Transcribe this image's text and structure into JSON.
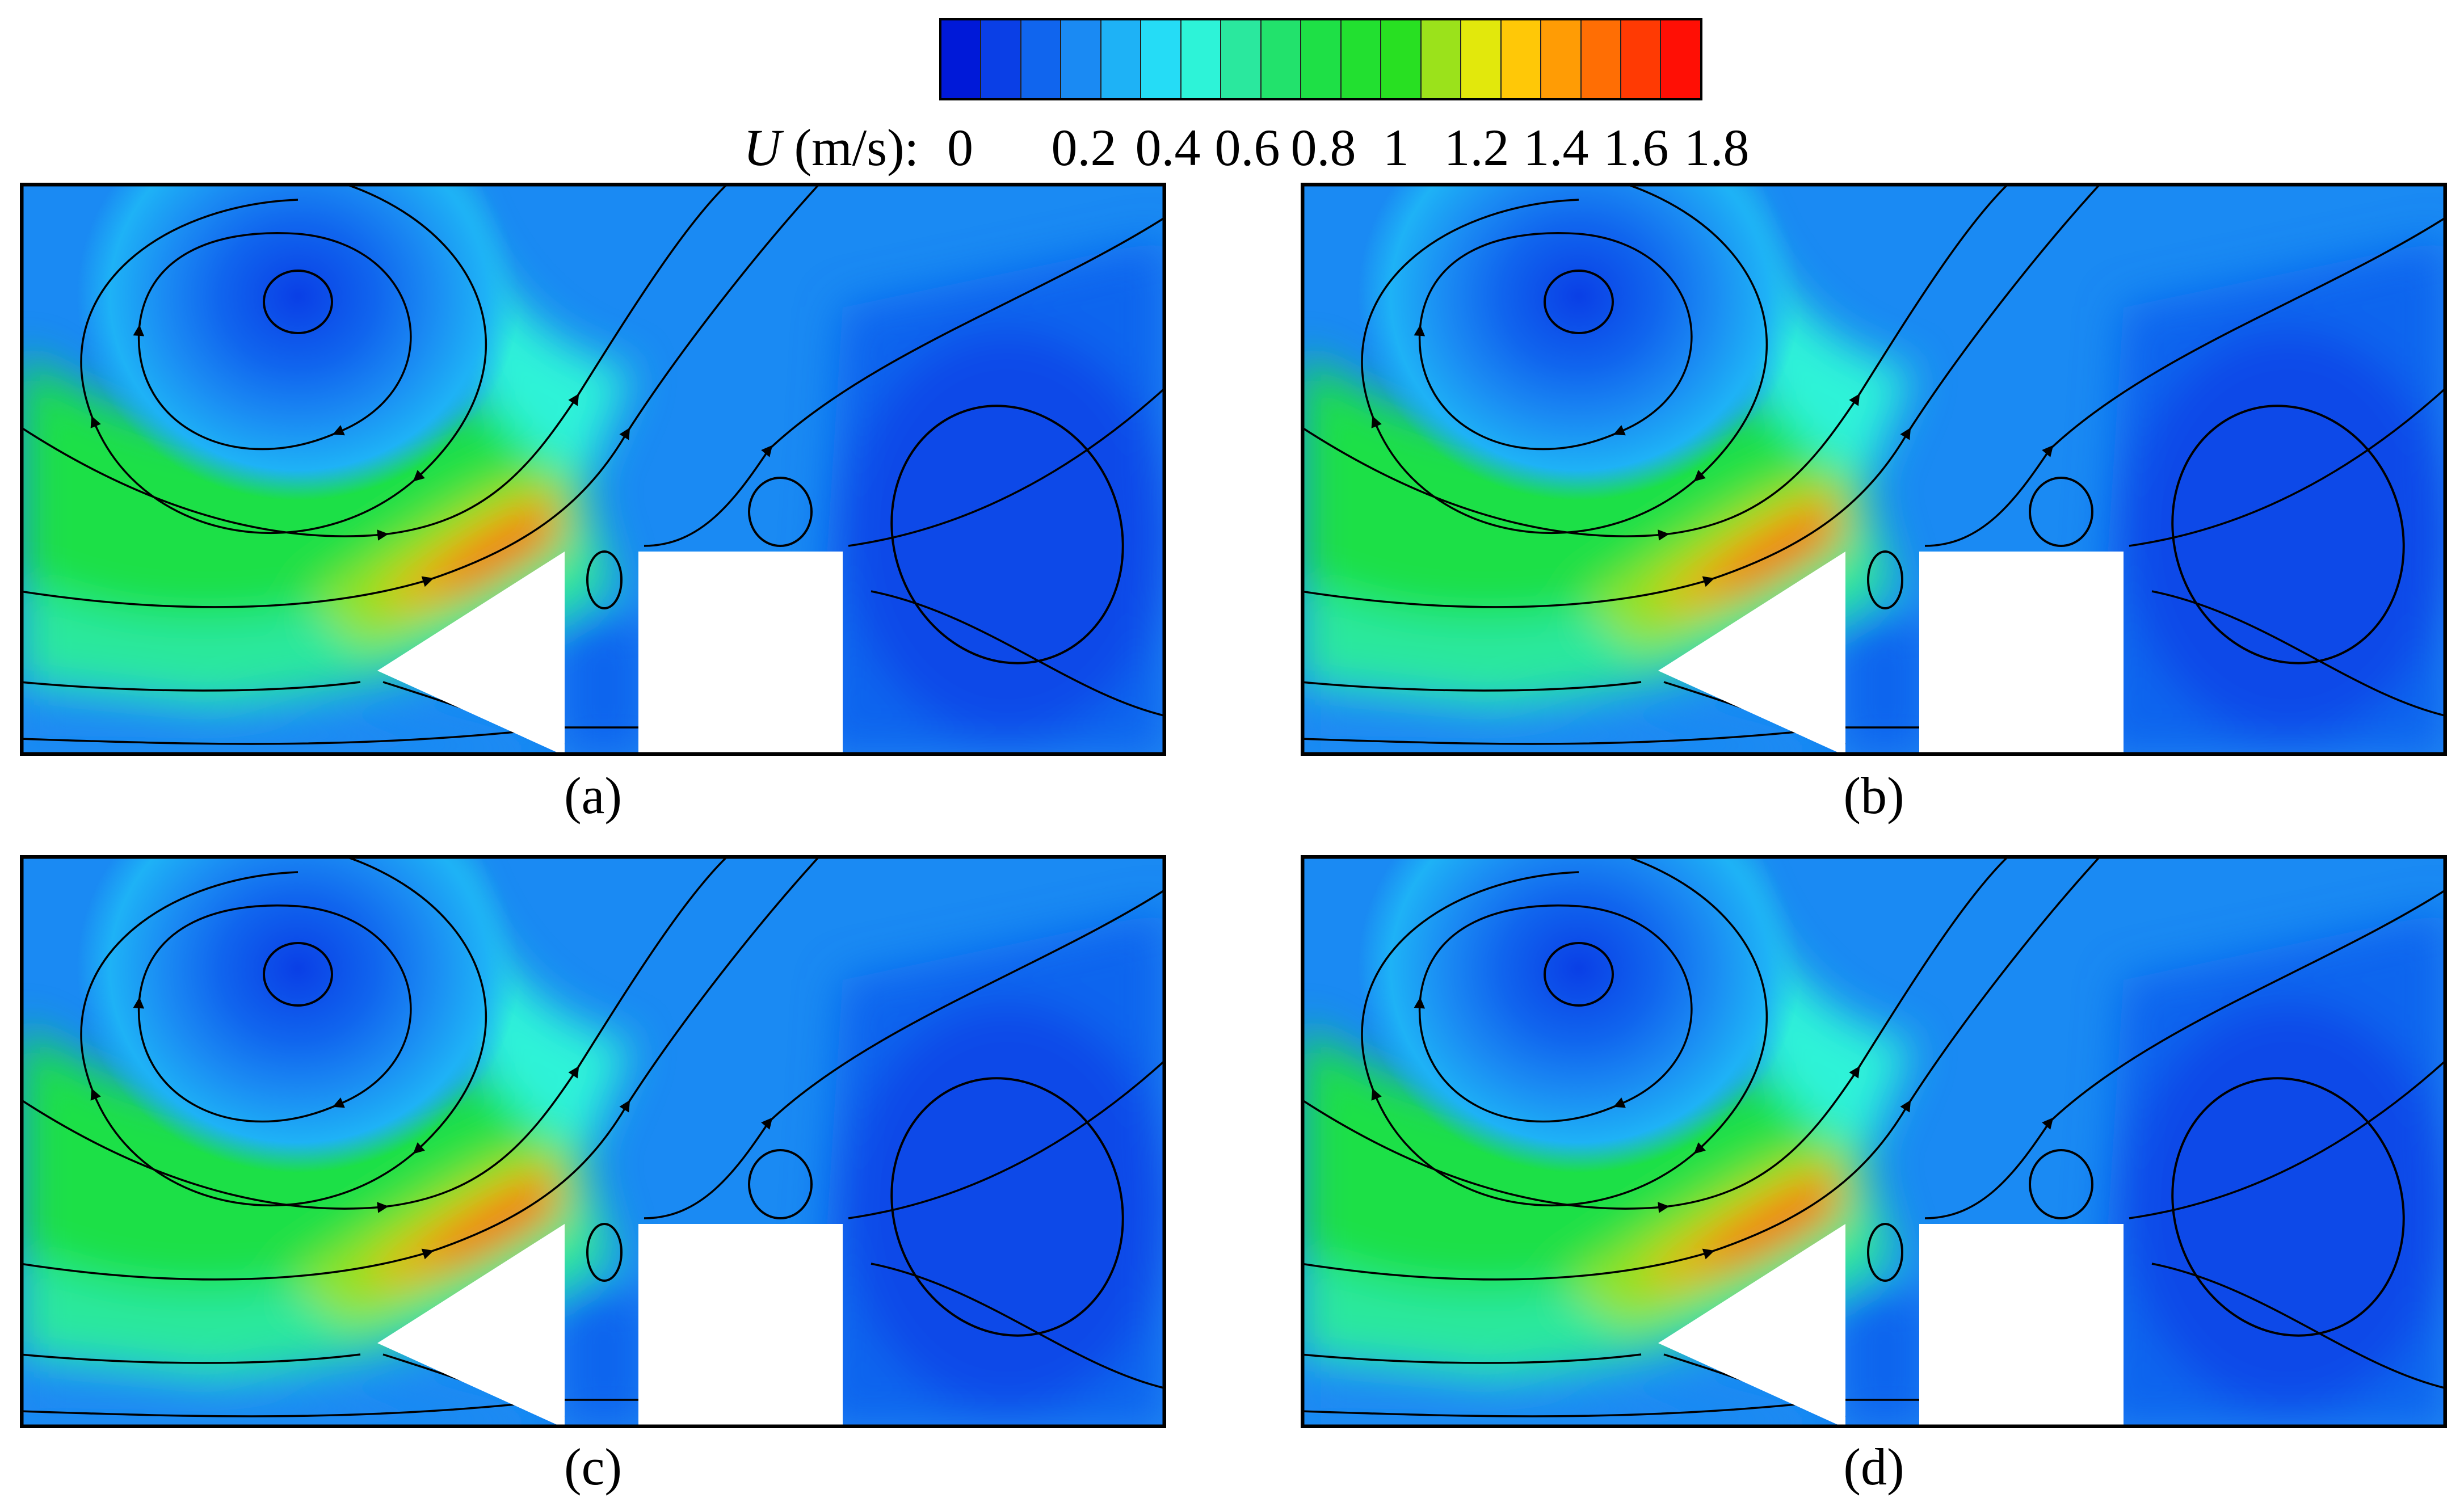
{
  "colorbar": {
    "label_variable": "U",
    "label_units": " (m/s): ",
    "ticks": [
      "0",
      "0.2",
      "0.4",
      "0.6",
      "0.8",
      "1",
      "1.2",
      "1.4",
      "1.6",
      "1.8"
    ],
    "levels": [
      "#0019d8",
      "#0a3fe6",
      "#1065ee",
      "#1a8af3",
      "#1eb2f6",
      "#25dcf6",
      "#2df3d8",
      "#2ae89e",
      "#22e26c",
      "#1ee046",
      "#22e030",
      "#28e022",
      "#9be21b",
      "#e2e80c",
      "#ffc807",
      "#ff9c05",
      "#ff6e04",
      "#ff3a03",
      "#ff0f05"
    ]
  },
  "panels": [
    {
      "caption": "(a)",
      "jet_strength": 0.72
    },
    {
      "caption": "(b)",
      "jet_strength": 0.8
    },
    {
      "caption": "(c)",
      "jet_strength": 0.92
    },
    {
      "caption": "(d)",
      "jet_strength": 1.0
    }
  ],
  "colors": {
    "background": "#1f66ea",
    "frame": "#000000",
    "streamline": "#000000"
  }
}
